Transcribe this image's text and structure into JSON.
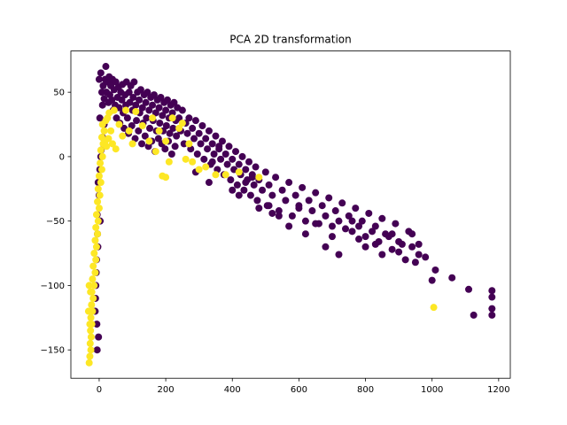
{
  "chart_data": {
    "type": "scatter",
    "title": "PCA 2D transformation",
    "xlabel": "",
    "ylabel": "",
    "xlim": [
      -85,
      1235
    ],
    "ylim": [
      -172,
      82
    ],
    "x_ticks": [
      0,
      200,
      400,
      600,
      800,
      1000,
      1200
    ],
    "y_ticks": [
      -150,
      -100,
      -50,
      0,
      50
    ],
    "grid": false,
    "legend": "none",
    "colors": {
      "class_0": "#440154",
      "class_1": "#fde725"
    },
    "series": [
      {
        "color_key": "class_0",
        "points": [
          [
            0,
            60
          ],
          [
            5,
            65
          ],
          [
            8,
            50
          ],
          [
            10,
            40
          ],
          [
            12,
            55
          ],
          [
            15,
            45
          ],
          [
            18,
            60
          ],
          [
            20,
            70
          ],
          [
            22,
            50
          ],
          [
            25,
            58
          ],
          [
            28,
            42
          ],
          [
            30,
            62
          ],
          [
            32,
            48
          ],
          [
            35,
            55
          ],
          [
            38,
            44
          ],
          [
            40,
            60
          ],
          [
            42,
            36
          ],
          [
            45,
            52
          ],
          [
            48,
            40
          ],
          [
            50,
            58
          ],
          [
            52,
            30
          ],
          [
            55,
            46
          ],
          [
            58,
            54
          ],
          [
            60,
            38
          ],
          [
            62,
            26
          ],
          [
            65,
            50
          ],
          [
            68,
            44
          ],
          [
            70,
            56
          ],
          [
            72,
            34
          ],
          [
            75,
            22
          ],
          [
            78,
            48
          ],
          [
            80,
            40
          ],
          [
            82,
            58
          ],
          [
            85,
            30
          ],
          [
            88,
            18
          ],
          [
            90,
            50
          ],
          [
            92,
            42
          ],
          [
            95,
            55
          ],
          [
            98,
            24
          ],
          [
            100,
            36
          ],
          [
            102,
            46
          ],
          [
            105,
            58
          ],
          [
            108,
            14
          ],
          [
            110,
            40
          ],
          [
            112,
            28
          ],
          [
            115,
            50
          ],
          [
            118,
            20
          ],
          [
            120,
            44
          ],
          [
            122,
            34
          ],
          [
            125,
            52
          ],
          [
            128,
            10
          ],
          [
            130,
            38
          ],
          [
            132,
            26
          ],
          [
            135,
            48
          ],
          [
            138,
            16
          ],
          [
            140,
            42
          ],
          [
            142,
            30
          ],
          [
            145,
            50
          ],
          [
            148,
            8
          ],
          [
            150,
            36
          ],
          [
            152,
            22
          ],
          [
            155,
            46
          ],
          [
            158,
            12
          ],
          [
            160,
            40
          ],
          [
            162,
            28
          ],
          [
            165,
            48
          ],
          [
            168,
            4
          ],
          [
            170,
            34
          ],
          [
            172,
            20
          ],
          [
            175,
            44
          ],
          [
            178,
            14
          ],
          [
            180,
            38
          ],
          [
            182,
            26
          ],
          [
            185,
            46
          ],
          [
            188,
            10
          ],
          [
            190,
            32
          ],
          [
            192,
            20
          ],
          [
            195,
            42
          ],
          [
            198,
            6
          ],
          [
            200,
            36
          ],
          [
            202,
            24
          ],
          [
            205,
            44
          ],
          [
            208,
            12
          ],
          [
            210,
            30
          ],
          [
            212,
            18
          ],
          [
            215,
            40
          ],
          [
            218,
            2
          ],
          [
            220,
            34
          ],
          [
            222,
            22
          ],
          [
            225,
            42
          ],
          [
            228,
            8
          ],
          [
            230,
            28
          ],
          [
            232,
            16
          ],
          [
            235,
            38
          ],
          [
            240,
            30
          ],
          [
            245,
            20
          ],
          [
            250,
            36
          ],
          [
            255,
            10
          ],
          [
            260,
            26
          ],
          [
            265,
            18
          ],
          [
            270,
            30
          ],
          [
            275,
            6
          ],
          [
            280,
            22
          ],
          [
            285,
            14
          ],
          [
            290,
            28
          ],
          [
            295,
            2
          ],
          [
            300,
            18
          ],
          [
            305,
            10
          ],
          [
            310,
            24
          ],
          [
            315,
            -2
          ],
          [
            320,
            14
          ],
          [
            325,
            6
          ],
          [
            330,
            20
          ],
          [
            335,
            -6
          ],
          [
            340,
            10
          ],
          [
            345,
            2
          ],
          [
            350,
            16
          ],
          [
            355,
            -10
          ],
          [
            360,
            6
          ],
          [
            365,
            -2
          ],
          [
            370,
            12
          ],
          [
            375,
            -14
          ],
          [
            380,
            2
          ],
          [
            385,
            -6
          ],
          [
            390,
            8
          ],
          [
            395,
            -18
          ],
          [
            400,
            -2
          ],
          [
            405,
            -10
          ],
          [
            410,
            4
          ],
          [
            415,
            -22
          ],
          [
            420,
            -6
          ],
          [
            425,
            -14
          ],
          [
            430,
            0
          ],
          [
            435,
            -26
          ],
          [
            440,
            -10
          ],
          [
            445,
            -18
          ],
          [
            450,
            -4
          ],
          [
            455,
            -30
          ],
          [
            460,
            -14
          ],
          [
            465,
            -22
          ],
          [
            470,
            -8
          ],
          [
            475,
            -34
          ],
          [
            480,
            -18
          ],
          [
            490,
            -26
          ],
          [
            500,
            -12
          ],
          [
            505,
            -38
          ],
          [
            510,
            -22
          ],
          [
            520,
            -30
          ],
          [
            530,
            -16
          ],
          [
            540,
            -42
          ],
          [
            550,
            -26
          ],
          [
            560,
            -34
          ],
          [
            570,
            -20
          ],
          [
            580,
            -46
          ],
          [
            590,
            -30
          ],
          [
            600,
            -38
          ],
          [
            610,
            -24
          ],
          [
            620,
            -50
          ],
          [
            630,
            -34
          ],
          [
            640,
            -42
          ],
          [
            650,
            -28
          ],
          [
            660,
            -52
          ],
          [
            670,
            -38
          ],
          [
            680,
            -46
          ],
          [
            690,
            -32
          ],
          [
            700,
            -54
          ],
          [
            710,
            -42
          ],
          [
            720,
            -50
          ],
          [
            730,
            -36
          ],
          [
            740,
            -56
          ],
          [
            750,
            -46
          ],
          [
            760,
            -58
          ],
          [
            770,
            -40
          ],
          [
            780,
            -54
          ],
          [
            790,
            -50
          ],
          [
            800,
            -62
          ],
          [
            810,
            -44
          ],
          [
            820,
            -58
          ],
          [
            830,
            -54
          ],
          [
            840,
            -66
          ],
          [
            850,
            -48
          ],
          [
            860,
            -60
          ],
          [
            870,
            -62
          ],
          [
            880,
            -72
          ],
          [
            890,
            -52
          ],
          [
            900,
            -66
          ],
          [
            910,
            -68
          ],
          [
            920,
            -80
          ],
          [
            930,
            -58
          ],
          [
            940,
            -70
          ],
          [
            950,
            -82
          ],
          [
            960,
            -68
          ],
          [
            980,
            -78
          ],
          [
            1000,
            -96
          ],
          [
            1010,
            -88
          ],
          [
            1060,
            -94
          ],
          [
            1110,
            -103
          ],
          [
            1125,
            -123
          ],
          [
            1180,
            -104
          ],
          [
            1180,
            -109
          ],
          [
            1180,
            -118
          ],
          [
            1180,
            -123
          ],
          [
            0,
            -30
          ],
          [
            -5,
            -60
          ],
          [
            -8,
            -80
          ],
          [
            -10,
            -100
          ],
          [
            -12,
            -120
          ],
          [
            -6,
            -45
          ],
          [
            -3,
            -20
          ],
          [
            2,
            -10
          ],
          [
            5,
            0
          ],
          [
            -4,
            -70
          ],
          [
            -9,
            -90
          ],
          [
            -11,
            -110
          ],
          [
            -7,
            -130
          ],
          [
            3,
            -50
          ],
          [
            6,
            5
          ],
          [
            10,
            15
          ],
          [
            15,
            25
          ],
          [
            2,
            30
          ],
          [
            -2,
            -140
          ],
          [
            -6,
            -150
          ],
          [
            290,
            -12
          ],
          [
            330,
            -20
          ],
          [
            340,
            -4
          ],
          [
            360,
            8
          ],
          [
            400,
            -26
          ],
          [
            420,
            -30
          ],
          [
            440,
            -20
          ],
          [
            460,
            -16
          ],
          [
            480,
            -40
          ],
          [
            510,
            -38
          ],
          [
            520,
            -44
          ],
          [
            540,
            -46
          ],
          [
            570,
            -54
          ],
          [
            600,
            -40
          ],
          [
            620,
            -60
          ],
          [
            650,
            -52
          ],
          [
            680,
            -70
          ],
          [
            700,
            -62
          ],
          [
            720,
            -76
          ],
          [
            760,
            -50
          ],
          [
            780,
            -64
          ],
          [
            800,
            -70
          ],
          [
            830,
            -68
          ],
          [
            850,
            -76
          ],
          [
            880,
            -60
          ],
          [
            900,
            -74
          ],
          [
            940,
            -60
          ],
          [
            960,
            -76
          ]
        ]
      },
      {
        "color_key": "class_1",
        "points": [
          [
            -30,
            -160
          ],
          [
            -28,
            -155
          ],
          [
            -25,
            -150
          ],
          [
            -27,
            -145
          ],
          [
            -24,
            -140
          ],
          [
            -26,
            -135
          ],
          [
            -22,
            -130
          ],
          [
            -25,
            -125
          ],
          [
            -20,
            -120
          ],
          [
            -23,
            -115
          ],
          [
            -18,
            -110
          ],
          [
            -22,
            -105
          ],
          [
            -15,
            -100
          ],
          [
            -20,
            -95
          ],
          [
            -12,
            -90
          ],
          [
            -18,
            -85
          ],
          [
            -10,
            -80
          ],
          [
            -15,
            -75
          ],
          [
            -8,
            -70
          ],
          [
            -12,
            -65
          ],
          [
            -5,
            -60
          ],
          [
            -10,
            -55
          ],
          [
            -3,
            -50
          ],
          [
            -8,
            -45
          ],
          [
            0,
            -40
          ],
          [
            -5,
            -35
          ],
          [
            2,
            -30
          ],
          [
            -3,
            -25
          ],
          [
            5,
            -20
          ],
          [
            0,
            -15
          ],
          [
            8,
            -10
          ],
          [
            3,
            -5
          ],
          [
            10,
            0
          ],
          [
            5,
            5
          ],
          [
            12,
            10
          ],
          [
            8,
            15
          ],
          [
            15,
            20
          ],
          [
            10,
            25
          ],
          [
            20,
            28
          ],
          [
            18,
            12
          ],
          [
            25,
            30
          ],
          [
            22,
            8
          ],
          [
            30,
            34
          ],
          [
            28,
            14
          ],
          [
            35,
            20
          ],
          [
            40,
            10
          ],
          [
            45,
            36
          ],
          [
            50,
            6
          ],
          [
            60,
            25
          ],
          [
            70,
            16
          ],
          [
            80,
            36
          ],
          [
            90,
            20
          ],
          [
            100,
            10
          ],
          [
            110,
            35
          ],
          [
            130,
            24
          ],
          [
            150,
            12
          ],
          [
            160,
            30
          ],
          [
            170,
            4
          ],
          [
            180,
            20
          ],
          [
            200,
            12
          ],
          [
            210,
            -4
          ],
          [
            220,
            30
          ],
          [
            240,
            22
          ],
          [
            250,
            26
          ],
          [
            260,
            -2
          ],
          [
            270,
            10
          ],
          [
            280,
            -4
          ],
          [
            300,
            -10
          ],
          [
            320,
            -8
          ],
          [
            350,
            -14
          ],
          [
            380,
            -14
          ],
          [
            420,
            -12
          ],
          [
            480,
            -16
          ],
          [
            200,
            -16
          ],
          [
            190,
            -15
          ],
          [
            1005,
            -117
          ],
          [
            -30,
            -100
          ],
          [
            -32,
            -120
          ],
          [
            -28,
            -130
          ],
          [
            -26,
            -105
          ]
        ]
      }
    ]
  }
}
